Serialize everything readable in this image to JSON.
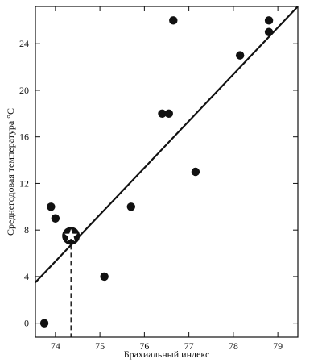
{
  "chart_data": {
    "type": "scatter",
    "title": "",
    "xlabel": "Брахиальный индекс",
    "ylabel": "Среднегодовая температура °C",
    "xlim": [
      73.55,
      79.45
    ],
    "ylim": [
      -1.2,
      27.2
    ],
    "xticks": [
      74,
      75,
      76,
      77,
      78,
      79
    ],
    "yticks": [
      0,
      4,
      8,
      12,
      16,
      20,
      24
    ],
    "grid": false,
    "legend": "none",
    "series": [
      {
        "points": [
          {
            "x": 73.75,
            "y": 0
          },
          {
            "x": 73.9,
            "y": 10
          },
          {
            "x": 74.0,
            "y": 9
          },
          {
            "x": 75.1,
            "y": 4
          },
          {
            "x": 75.7,
            "y": 10
          },
          {
            "x": 76.4,
            "y": 18
          },
          {
            "x": 76.55,
            "y": 18
          },
          {
            "x": 76.65,
            "y": 26
          },
          {
            "x": 77.15,
            "y": 13
          },
          {
            "x": 78.15,
            "y": 23
          },
          {
            "x": 78.8,
            "y": 26
          },
          {
            "x": 78.8,
            "y": 25
          }
        ]
      }
    ],
    "regression_line": {
      "from": {
        "x": 73.55,
        "y": 3.5
      },
      "to": {
        "x": 79.45,
        "y": 27.2
      }
    },
    "highlight_point": {
      "x": 74.35,
      "y": 7.5,
      "marker": "star-in-circle",
      "dropline": "dashed"
    },
    "colors": {
      "marks": "#111111",
      "background": "#ffffff"
    }
  }
}
